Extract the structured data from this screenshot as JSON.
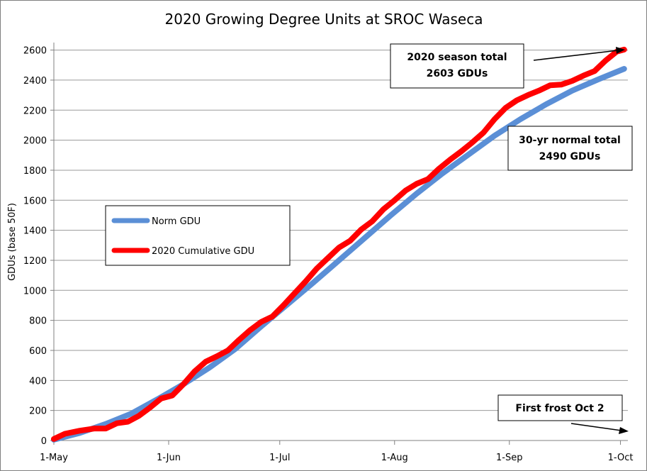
{
  "chart_data": {
    "type": "line",
    "title": "2020 Growing Degree Units at SROC Waseca",
    "xlabel": "",
    "ylabel": "GDUs (base 50F)",
    "xlim": [
      "2020-05-01",
      "2020-10-03"
    ],
    "ylim": [
      0,
      2650
    ],
    "y_ticks": [
      0,
      200,
      400,
      600,
      800,
      1000,
      1200,
      1400,
      1600,
      1800,
      2000,
      2200,
      2400,
      2600
    ],
    "x_ticks": [
      {
        "label": "1-May",
        "date": "2020-05-01"
      },
      {
        "label": "1-Jun",
        "date": "2020-06-01"
      },
      {
        "label": "1-Jul",
        "date": "2020-07-01"
      },
      {
        "label": "1-Aug",
        "date": "2020-08-01"
      },
      {
        "label": "1-Sep",
        "date": "2020-09-01"
      },
      {
        "label": "1-Oct",
        "date": "2020-10-01"
      }
    ],
    "grid": "horizontal",
    "legend_position": "left-center",
    "series": [
      {
        "name": "Norm GDU",
        "color": "#5b8fd6",
        "points": [
          [
            "2020-05-01",
            5
          ],
          [
            "2020-05-08",
            50
          ],
          [
            "2020-05-15",
            110
          ],
          [
            "2020-05-22",
            180
          ],
          [
            "2020-05-29",
            275
          ],
          [
            "2020-06-05",
            375
          ],
          [
            "2020-06-12",
            485
          ],
          [
            "2020-06-19",
            610
          ],
          [
            "2020-06-26",
            760
          ],
          [
            "2020-07-03",
            905
          ],
          [
            "2020-07-10",
            1050
          ],
          [
            "2020-07-17",
            1200
          ],
          [
            "2020-07-24",
            1350
          ],
          [
            "2020-07-31",
            1500
          ],
          [
            "2020-08-07",
            1645
          ],
          [
            "2020-08-14",
            1780
          ],
          [
            "2020-08-21",
            1905
          ],
          [
            "2020-08-28",
            2030
          ],
          [
            "2020-09-04",
            2140
          ],
          [
            "2020-09-11",
            2240
          ],
          [
            "2020-09-18",
            2330
          ],
          [
            "2020-09-25",
            2405
          ],
          [
            "2020-10-02",
            2475
          ]
        ]
      },
      {
        "name": "2020 Cumulative GDU",
        "color": "#ff0000",
        "points": [
          [
            "2020-05-01",
            10
          ],
          [
            "2020-05-04",
            45
          ],
          [
            "2020-05-08",
            65
          ],
          [
            "2020-05-12",
            80
          ],
          [
            "2020-05-15",
            80
          ],
          [
            "2020-05-18",
            115
          ],
          [
            "2020-05-21",
            125
          ],
          [
            "2020-05-24",
            165
          ],
          [
            "2020-05-27",
            220
          ],
          [
            "2020-05-30",
            280
          ],
          [
            "2020-06-02",
            300
          ],
          [
            "2020-06-05",
            375
          ],
          [
            "2020-06-08",
            460
          ],
          [
            "2020-06-11",
            525
          ],
          [
            "2020-06-14",
            560
          ],
          [
            "2020-06-17",
            600
          ],
          [
            "2020-06-20",
            670
          ],
          [
            "2020-06-23",
            735
          ],
          [
            "2020-06-26",
            790
          ],
          [
            "2020-06-29",
            825
          ],
          [
            "2020-07-02",
            900
          ],
          [
            "2020-07-05",
            980
          ],
          [
            "2020-07-08",
            1060
          ],
          [
            "2020-07-11",
            1145
          ],
          [
            "2020-07-14",
            1215
          ],
          [
            "2020-07-17",
            1285
          ],
          [
            "2020-07-20",
            1330
          ],
          [
            "2020-07-23",
            1405
          ],
          [
            "2020-07-26",
            1460
          ],
          [
            "2020-07-29",
            1540
          ],
          [
            "2020-08-01",
            1600
          ],
          [
            "2020-08-04",
            1665
          ],
          [
            "2020-08-07",
            1710
          ],
          [
            "2020-08-10",
            1740
          ],
          [
            "2020-08-13",
            1810
          ],
          [
            "2020-08-16",
            1870
          ],
          [
            "2020-08-19",
            1925
          ],
          [
            "2020-08-22",
            1985
          ],
          [
            "2020-08-25",
            2050
          ],
          [
            "2020-08-28",
            2140
          ],
          [
            "2020-08-31",
            2215
          ],
          [
            "2020-09-03",
            2265
          ],
          [
            "2020-09-06",
            2300
          ],
          [
            "2020-09-09",
            2330
          ],
          [
            "2020-09-12",
            2365
          ],
          [
            "2020-09-15",
            2370
          ],
          [
            "2020-09-18",
            2395
          ],
          [
            "2020-09-21",
            2430
          ],
          [
            "2020-09-24",
            2460
          ],
          [
            "2020-09-27",
            2530
          ],
          [
            "2020-09-30",
            2590
          ],
          [
            "2020-10-02",
            2603
          ]
        ]
      }
    ],
    "annotations": [
      {
        "lines": [
          "2020 season total",
          "2603  GDUs"
        ],
        "arrow": true
      },
      {
        "lines": [
          "30-yr normal total",
          "2490 GDUs"
        ],
        "arrow": false
      },
      {
        "lines": [
          "First frost Oct 2"
        ],
        "arrow": true
      }
    ]
  }
}
